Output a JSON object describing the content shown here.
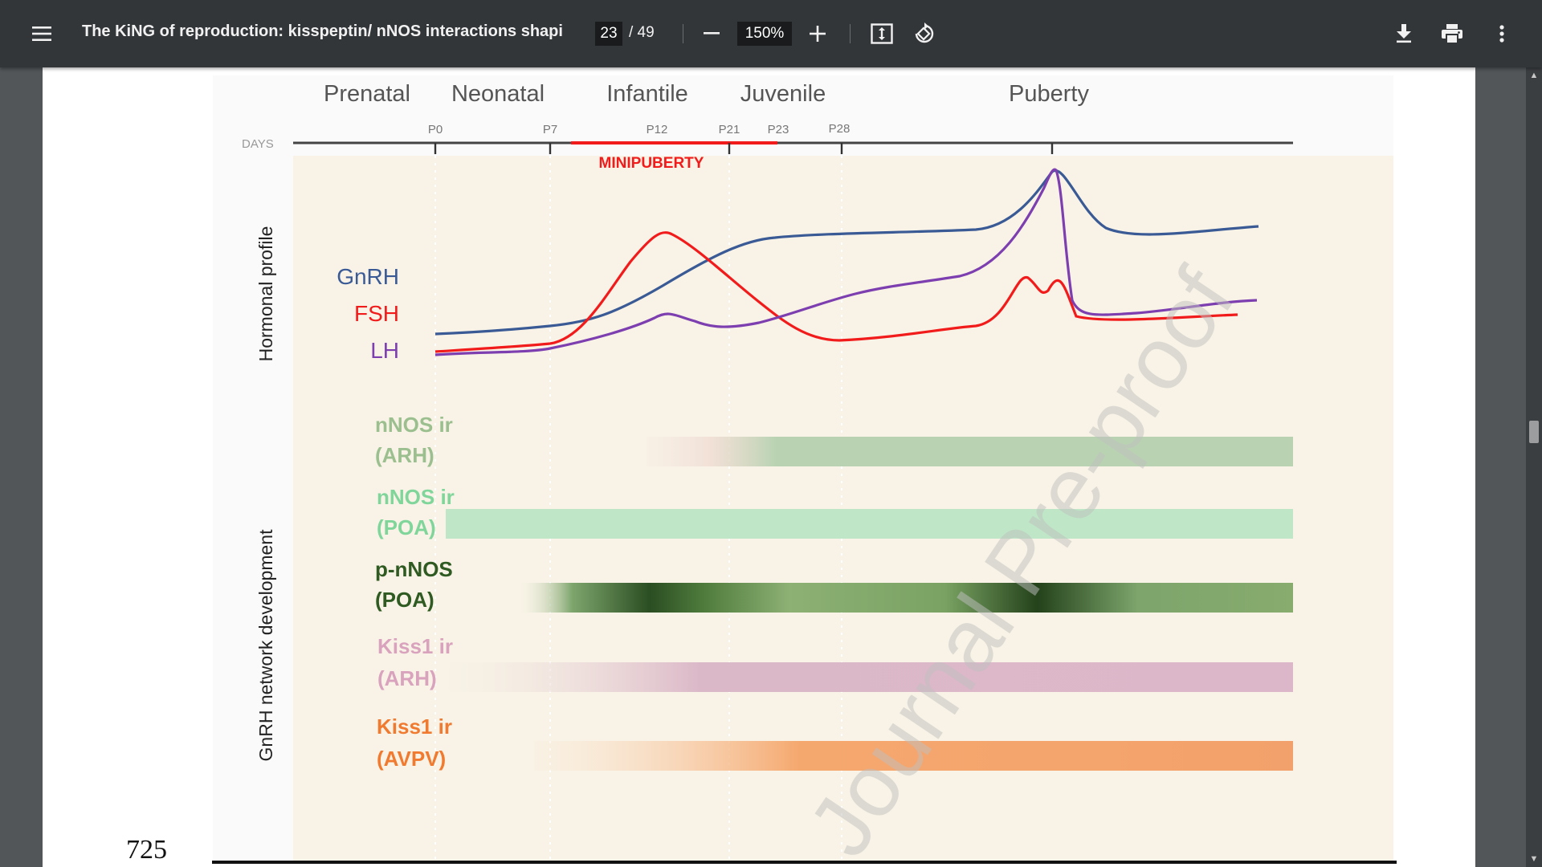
{
  "toolbar": {
    "menu_icon": "hamburger-menu-icon",
    "title": "The KiNG of reproduction: kisspeptin/ nNOS interactions shapi...",
    "current_page": "23",
    "page_total": "/ 49",
    "zoom": "150%",
    "icons": [
      "zoom-out-icon",
      "zoom-in-icon",
      "fit-to-page-icon",
      "rotate-icon",
      "download-icon",
      "print-icon",
      "more-vert-icon"
    ]
  },
  "page": {
    "line_number": "725",
    "watermark": "Journal Pre-proof"
  },
  "figure": {
    "stages": [
      "Prenatal",
      "Neonatal",
      "Infantile",
      "Juvenile",
      "Puberty"
    ],
    "days_label": "DAYS",
    "days": [
      "P0",
      "P7",
      "P12",
      "P21",
      "P23",
      "P28"
    ],
    "minipuberty_label": "MINIPUBERTY",
    "hormonal_label": "Hormonal profile",
    "network_label": "GnRH network development",
    "hormones": [
      {
        "name": "GnRH",
        "color": "#3a5a96"
      },
      {
        "name": "FSH",
        "color": "#f21b1b"
      },
      {
        "name": "LH",
        "color": "#7d3fb0"
      }
    ],
    "bars": [
      {
        "line1": "nNOS ir",
        "line2": "(ARH)",
        "color": "#9bbf8e"
      },
      {
        "line1": "nNOS ir",
        "line2": "(POA)",
        "color": "#7fd59a"
      },
      {
        "line1": "p-nNOS",
        "line2": "(POA)",
        "color": "#2f5a22"
      },
      {
        "line1": "Kiss1 ir",
        "line2": "(ARH)",
        "color": "#d9a3be"
      },
      {
        "line1": "Kiss1 ir",
        "line2": "(AVPV)",
        "color": "#f07a2f"
      }
    ]
  }
}
